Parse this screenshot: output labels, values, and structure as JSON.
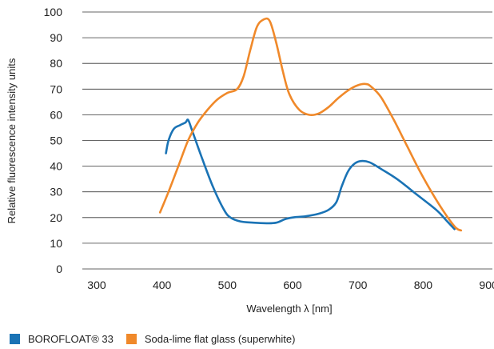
{
  "chart_data": {
    "type": "line",
    "title": "",
    "xlabel": "Wavelength λ [nm]",
    "ylabel": "Relative fluorescence intensity units",
    "xlim": [
      300,
      900
    ],
    "ylim": [
      0,
      100
    ],
    "x_ticks": [
      300,
      400,
      500,
      600,
      700,
      800,
      900
    ],
    "y_ticks": [
      0,
      10,
      20,
      30,
      40,
      50,
      60,
      70,
      80,
      90,
      100
    ],
    "grid": "horizontal",
    "legend_position": "bottom-left",
    "series": [
      {
        "name": "BOROFLOAT® 33",
        "color": "#1a73b5",
        "points": [
          [
            406,
            45
          ],
          [
            410,
            50
          ],
          [
            418,
            54.5
          ],
          [
            428,
            56
          ],
          [
            436,
            57
          ],
          [
            440,
            58
          ],
          [
            446,
            54
          ],
          [
            460,
            44
          ],
          [
            478,
            32
          ],
          [
            495,
            23
          ],
          [
            505,
            20
          ],
          [
            520,
            18.5
          ],
          [
            540,
            18
          ],
          [
            560,
            17.8
          ],
          [
            575,
            18
          ],
          [
            590,
            19.5
          ],
          [
            605,
            20.2
          ],
          [
            620,
            20.5
          ],
          [
            640,
            21.5
          ],
          [
            655,
            23
          ],
          [
            667,
            26
          ],
          [
            675,
            32
          ],
          [
            685,
            38
          ],
          [
            695,
            41
          ],
          [
            705,
            42
          ],
          [
            718,
            41.5
          ],
          [
            735,
            39
          ],
          [
            760,
            35
          ],
          [
            790,
            29
          ],
          [
            820,
            23
          ],
          [
            835,
            19
          ],
          [
            848,
            15.5
          ]
        ]
      },
      {
        "name": "Soda-lime flat glass (superwhite)",
        "color": "#f0892a",
        "points": [
          [
            397,
            22
          ],
          [
            410,
            30
          ],
          [
            425,
            40
          ],
          [
            440,
            50
          ],
          [
            455,
            57
          ],
          [
            470,
            62
          ],
          [
            485,
            66
          ],
          [
            500,
            68.5
          ],
          [
            515,
            70
          ],
          [
            525,
            75
          ],
          [
            535,
            85
          ],
          [
            545,
            94
          ],
          [
            555,
            97
          ],
          [
            565,
            96.5
          ],
          [
            575,
            88
          ],
          [
            585,
            77
          ],
          [
            595,
            68
          ],
          [
            610,
            62
          ],
          [
            625,
            60
          ],
          [
            640,
            60.5
          ],
          [
            655,
            63
          ],
          [
            670,
            66.5
          ],
          [
            685,
            69.5
          ],
          [
            700,
            71.5
          ],
          [
            712,
            72
          ],
          [
            720,
            71
          ],
          [
            735,
            67
          ],
          [
            755,
            58
          ],
          [
            775,
            48
          ],
          [
            795,
            38
          ],
          [
            815,
            29
          ],
          [
            835,
            21
          ],
          [
            850,
            16
          ],
          [
            858,
            15
          ]
        ]
      }
    ]
  }
}
